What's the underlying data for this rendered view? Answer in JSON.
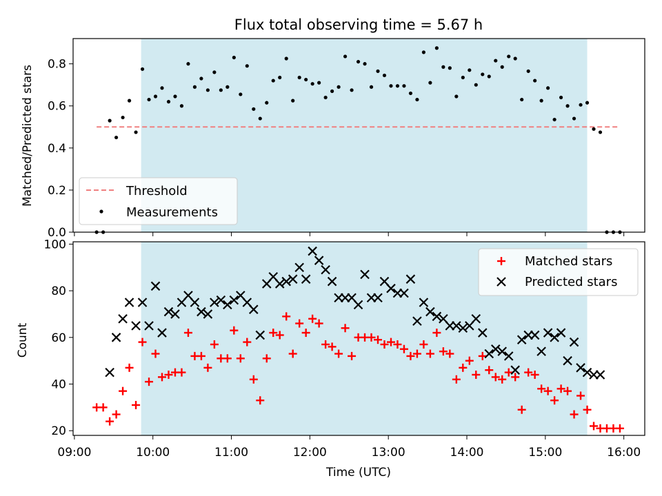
{
  "figure": {
    "title": "Flux total observing time = 5.67 h",
    "xlabel": "Time (UTC)",
    "x_ticks": [
      "09:00",
      "10:00",
      "11:00",
      "12:00",
      "13:00",
      "14:00",
      "15:00",
      "16:00"
    ],
    "observing_window": {
      "start": "09:51",
      "end": "15:32",
      "color": "#add8e6"
    }
  },
  "chart_data": [
    {
      "type": "scatter",
      "ylabel": "Matched/Predicted stars",
      "ylim": [
        0,
        0.92
      ],
      "y_ticks": [
        "0.0",
        "0.2",
        "0.4",
        "0.6",
        "0.8"
      ],
      "xlim": [
        "08:59",
        "16:16"
      ],
      "legend_position": "lower-left",
      "series": [
        {
          "name": "Threshold",
          "style": "dashed-line",
          "color": "#f08080",
          "x": [
            "09:17",
            "15:57"
          ],
          "y": [
            0.5,
            0.5
          ]
        },
        {
          "name": "Measurements",
          "style": "dot",
          "color": "#000000",
          "x": [
            "09:17",
            "09:22",
            "09:27",
            "09:32",
            "09:37",
            "09:42",
            "09:47",
            "09:52",
            "09:57",
            "10:02",
            "10:07",
            "10:12",
            "10:17",
            "10:22",
            "10:27",
            "10:32",
            "10:37",
            "10:42",
            "10:47",
            "10:52",
            "10:57",
            "11:02",
            "11:07",
            "11:12",
            "11:17",
            "11:22",
            "11:27",
            "11:32",
            "11:37",
            "11:42",
            "11:47",
            "11:52",
            "11:57",
            "12:02",
            "12:07",
            "12:12",
            "12:17",
            "12:22",
            "12:27",
            "12:32",
            "12:37",
            "12:42",
            "12:47",
            "12:52",
            "12:57",
            "13:02",
            "13:07",
            "13:12",
            "13:17",
            "13:22",
            "13:27",
            "13:32",
            "13:37",
            "13:42",
            "13:47",
            "13:52",
            "13:57",
            "14:02",
            "14:07",
            "14:12",
            "14:17",
            "14:22",
            "14:27",
            "14:32",
            "14:37",
            "14:42",
            "14:47",
            "14:52",
            "14:57",
            "15:02",
            "15:07",
            "15:12",
            "15:17",
            "15:22",
            "15:27",
            "15:32",
            "15:37",
            "15:42",
            "15:47",
            "15:52",
            "15:57"
          ],
          "y": [
            0.0,
            0.0,
            0.53,
            0.45,
            0.545,
            0.625,
            0.475,
            0.775,
            0.63,
            0.645,
            0.685,
            0.62,
            0.645,
            0.6,
            0.8,
            0.69,
            0.73,
            0.675,
            0.76,
            0.675,
            0.69,
            0.83,
            0.655,
            0.79,
            0.585,
            0.54,
            0.615,
            0.72,
            0.735,
            0.825,
            0.625,
            0.735,
            0.725,
            0.705,
            0.71,
            0.64,
            0.67,
            0.69,
            0.835,
            0.675,
            0.81,
            0.8,
            0.69,
            0.765,
            0.745,
            0.695,
            0.695,
            0.695,
            0.66,
            0.63,
            0.855,
            0.71,
            0.875,
            0.785,
            0.78,
            0.645,
            0.735,
            0.77,
            0.7,
            0.75,
            0.74,
            0.815,
            0.785,
            0.835,
            0.825,
            0.63,
            0.765,
            0.72,
            0.625,
            0.685,
            0.535,
            0.64,
            0.6,
            0.54,
            0.605,
            0.615,
            0.49,
            0.475,
            0.0,
            0.0,
            0.0
          ]
        }
      ]
    },
    {
      "type": "scatter",
      "ylabel": "Count",
      "ylim": [
        18,
        101
      ],
      "y_ticks": [
        "20",
        "40",
        "60",
        "80",
        "100"
      ],
      "xlim": [
        "08:59",
        "16:16"
      ],
      "legend_position": "upper-right",
      "series": [
        {
          "name": "Matched stars",
          "marker": "plus",
          "color": "#ff0000",
          "x": [
            "09:17",
            "09:22",
            "09:27",
            "09:32",
            "09:37",
            "09:42",
            "09:47",
            "09:52",
            "09:57",
            "10:02",
            "10:07",
            "10:12",
            "10:17",
            "10:22",
            "10:27",
            "10:32",
            "10:37",
            "10:42",
            "10:47",
            "10:52",
            "10:57",
            "11:02",
            "11:07",
            "11:12",
            "11:17",
            "11:22",
            "11:27",
            "11:32",
            "11:37",
            "11:42",
            "11:47",
            "11:52",
            "11:57",
            "12:02",
            "12:07",
            "12:12",
            "12:17",
            "12:22",
            "12:27",
            "12:32",
            "12:37",
            "12:42",
            "12:47",
            "12:52",
            "12:57",
            "13:02",
            "13:07",
            "13:12",
            "13:17",
            "13:22",
            "13:27",
            "13:32",
            "13:37",
            "13:42",
            "13:47",
            "13:52",
            "13:57",
            "14:02",
            "14:07",
            "14:12",
            "14:17",
            "14:22",
            "14:27",
            "14:32",
            "14:37",
            "14:42",
            "14:47",
            "14:52",
            "14:57",
            "15:02",
            "15:07",
            "15:12",
            "15:17",
            "15:22",
            "15:27",
            "15:32",
            "15:37",
            "15:42",
            "15:47",
            "15:52",
            "15:57"
          ],
          "y": [
            30,
            30,
            24,
            27,
            37,
            47,
            31,
            58,
            41,
            53,
            43,
            44,
            45,
            45,
            62,
            52,
            52,
            47,
            57,
            51,
            51,
            63,
            51,
            58,
            42,
            33,
            51,
            62,
            61,
            69,
            53,
            66,
            62,
            68,
            66,
            57,
            56,
            53,
            64,
            52,
            60,
            60,
            60,
            59,
            57,
            58,
            57,
            55,
            52,
            53,
            57,
            53,
            62,
            54,
            53,
            42,
            47,
            50,
            44,
            52,
            46,
            43,
            42,
            45,
            43,
            29,
            45,
            44,
            38,
            37,
            33,
            38,
            37,
            27,
            35,
            29,
            22,
            21,
            21,
            21,
            21
          ]
        },
        {
          "name": "Predicted stars",
          "marker": "x",
          "color": "#000000",
          "x": [
            "09:27",
            "09:32",
            "09:37",
            "09:42",
            "09:47",
            "09:52",
            "09:57",
            "10:02",
            "10:07",
            "10:12",
            "10:17",
            "10:22",
            "10:27",
            "10:32",
            "10:37",
            "10:42",
            "10:47",
            "10:52",
            "10:57",
            "11:02",
            "11:07",
            "11:12",
            "11:17",
            "11:22",
            "11:27",
            "11:32",
            "11:37",
            "11:42",
            "11:47",
            "11:52",
            "11:57",
            "12:02",
            "12:07",
            "12:12",
            "12:17",
            "12:22",
            "12:27",
            "12:32",
            "12:37",
            "12:42",
            "12:47",
            "12:52",
            "12:57",
            "13:02",
            "13:07",
            "13:12",
            "13:17",
            "13:22",
            "13:27",
            "13:32",
            "13:37",
            "13:42",
            "13:47",
            "13:52",
            "13:57",
            "14:02",
            "14:07",
            "14:12",
            "14:17",
            "14:22",
            "14:27",
            "14:32",
            "14:37",
            "14:42",
            "14:47",
            "14:52",
            "14:57",
            "15:02",
            "15:07",
            "15:12",
            "15:17",
            "15:22",
            "15:27",
            "15:32",
            "15:37",
            "15:42"
          ],
          "y": [
            45,
            60,
            68,
            75,
            65,
            75,
            65,
            82,
            62,
            71,
            70,
            75,
            78,
            75,
            71,
            70,
            75,
            76,
            74,
            76,
            78,
            75,
            72,
            61,
            83,
            86,
            83,
            84,
            85,
            90,
            85,
            97,
            93,
            89,
            84,
            77,
            77,
            77,
            74,
            87,
            77,
            77,
            84,
            81,
            79,
            79,
            85,
            67,
            75,
            71,
            69,
            68,
            65,
            65,
            64,
            65,
            68,
            62,
            53,
            55,
            54,
            52,
            46,
            59,
            61,
            61,
            54,
            62,
            60,
            62,
            50,
            58,
            47,
            45,
            44,
            44
          ]
        }
      ]
    }
  ]
}
